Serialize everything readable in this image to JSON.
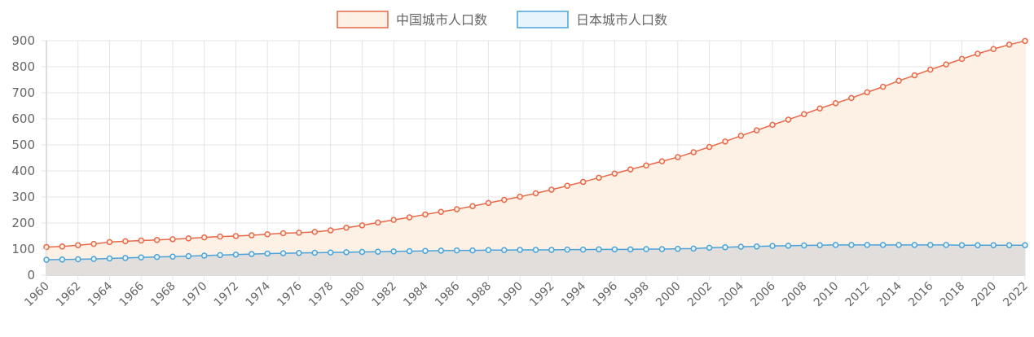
{
  "chart_data": {
    "type": "area",
    "x": [
      1960,
      1961,
      1962,
      1963,
      1964,
      1965,
      1966,
      1967,
      1968,
      1969,
      1970,
      1971,
      1972,
      1973,
      1974,
      1975,
      1976,
      1977,
      1978,
      1979,
      1980,
      1981,
      1982,
      1983,
      1984,
      1985,
      1986,
      1987,
      1988,
      1989,
      1990,
      1991,
      1992,
      1993,
      1994,
      1995,
      1996,
      1997,
      1998,
      1999,
      2000,
      2001,
      2002,
      2003,
      2004,
      2005,
      2006,
      2007,
      2008,
      2009,
      2010,
      2011,
      2012,
      2013,
      2014,
      2015,
      2016,
      2017,
      2018,
      2019,
      2020,
      2021,
      2022
    ],
    "ylim": [
      0,
      900
    ],
    "yticks": [
      0,
      100,
      200,
      300,
      400,
      500,
      600,
      700,
      800,
      900
    ],
    "xtick_labels": [
      "1960",
      "1962",
      "1964",
      "1966",
      "1968",
      "1970",
      "1972",
      "1974",
      "1976",
      "1978",
      "1980",
      "1982",
      "1984",
      "1986",
      "1988",
      "1990",
      "1992",
      "1994",
      "1996",
      "1998",
      "2000",
      "2002",
      "2004",
      "2006",
      "2008",
      "2010",
      "2012",
      "2014",
      "2016",
      "2018",
      "2020",
      "2022"
    ],
    "grid": true,
    "legend_position": "top",
    "series": [
      {
        "name": "中国城市人口数",
        "color": "#e8694a",
        "fill": "#fdf0e4",
        "values": [
          108,
          110,
          115,
          120,
          127,
          130,
          133,
          135,
          138,
          141,
          145,
          148,
          150,
          153,
          157,
          161,
          163,
          166,
          172,
          182,
          191,
          202,
          212,
          222,
          233,
          243,
          253,
          265,
          277,
          289,
          301,
          314,
          328,
          343,
          358,
          374,
          390,
          406,
          421,
          437,
          453,
          472,
          492,
          513,
          535,
          556,
          577,
          597,
          618,
          640,
          660,
          680,
          702,
          723,
          746,
          767,
          789,
          809,
          830,
          850,
          868,
          885,
          899
        ]
      },
      {
        "name": "日本城市人口数",
        "color": "#4ba3d8",
        "fill": "#e8f4fb",
        "values": [
          59,
          60,
          61,
          62,
          64,
          66,
          68,
          70,
          71,
          73,
          75,
          77,
          79,
          81,
          83,
          84,
          85,
          86,
          87,
          88,
          89,
          90,
          91,
          92,
          93,
          94,
          95,
          95,
          96,
          96,
          97,
          97,
          97,
          98,
          98,
          99,
          99,
          99,
          100,
          100,
          101,
          102,
          105,
          107,
          109,
          110,
          112,
          113,
          114,
          115,
          116,
          116,
          116,
          116,
          116,
          116,
          116,
          116,
          115,
          115,
          115,
          115,
          115
        ]
      }
    ]
  }
}
